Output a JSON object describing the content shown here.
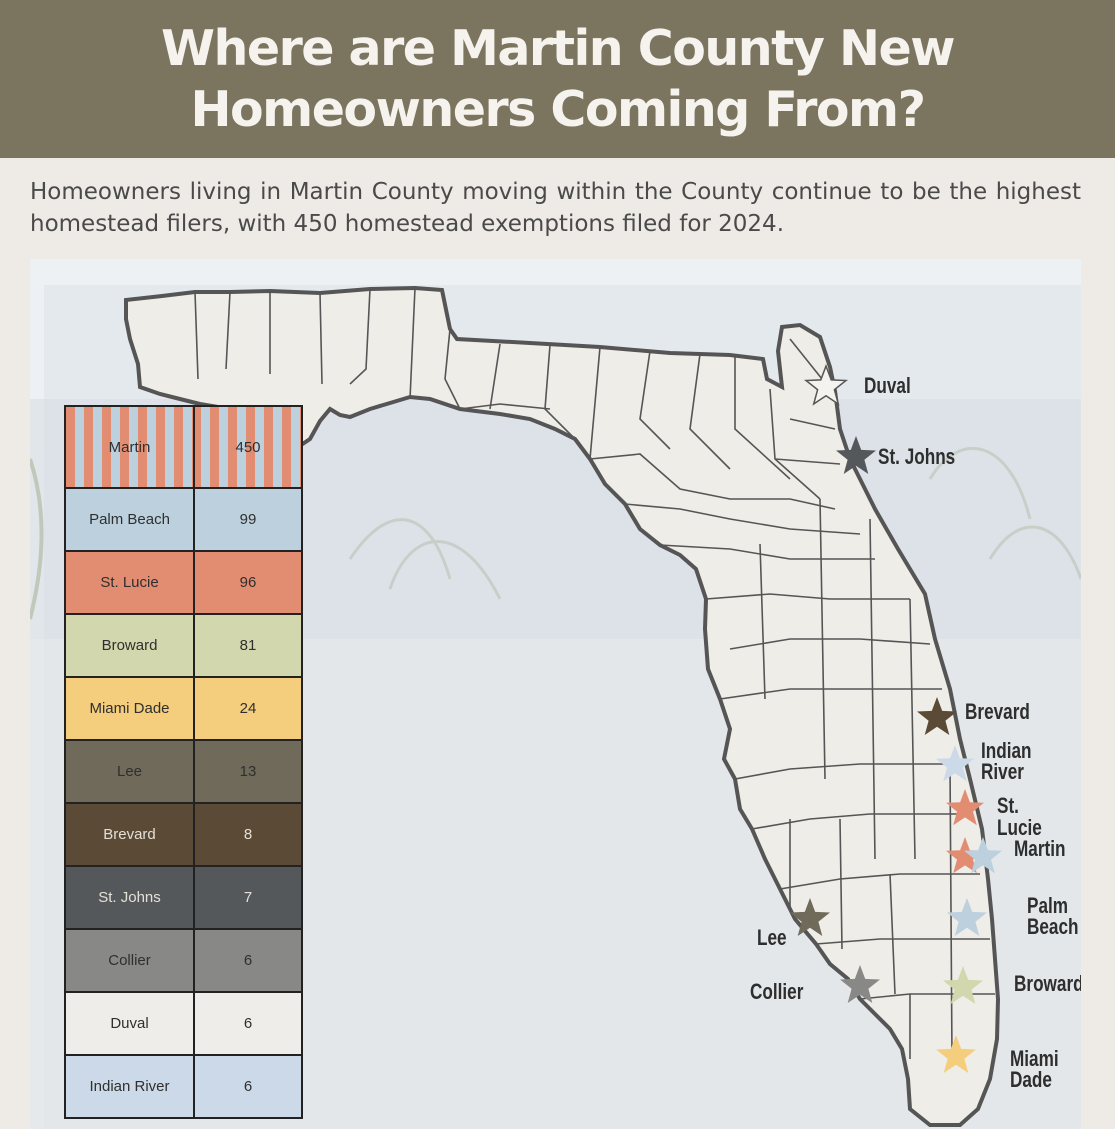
{
  "header": {
    "title": "Where are Martin County New Homeowners Coming From?"
  },
  "intro": {
    "text": "Homeowners living in Martin County moving within the County continue to be the highest homestead filers, with 450 homestead exemptions filed for 2024."
  },
  "legend": {
    "rows": [
      {
        "county": "Martin",
        "count": "450",
        "color": "striped"
      },
      {
        "county": "Palm Beach",
        "count": "99",
        "color": "#bcd0de"
      },
      {
        "county": "St. Lucie",
        "count": "96",
        "color": "#e28d72"
      },
      {
        "county": "Broward",
        "count": "81",
        "color": "#d2d7ad"
      },
      {
        "county": "Miami Dade",
        "count": "24",
        "color": "#f4cd7d"
      },
      {
        "county": "Lee",
        "count": "13",
        "color": "#6f6a59"
      },
      {
        "county": "Brevard",
        "count": "8",
        "color": "#5b4a35"
      },
      {
        "county": "St. Johns",
        "count": "7",
        "color": "#55585b"
      },
      {
        "county": "Collier",
        "count": "6",
        "color": "#888887"
      },
      {
        "county": "Duval",
        "count": "6",
        "color": "#efedea"
      },
      {
        "county": "Indian River",
        "count": "6",
        "color": "#ccd9e8"
      }
    ]
  },
  "map": {
    "labels": {
      "duval": "Duval",
      "st_johns": "St. Johns",
      "brevard": "Brevard",
      "indian_river": "Indian\nRiver",
      "st_lucie": "St. Lucie",
      "martin": "Martin",
      "palm_beach": "Palm\nBeach",
      "broward": "Broward",
      "miami_dade": "Miami\nDade",
      "lee": "Lee",
      "collier": "Collier"
    },
    "colors": {
      "land": "#efede8",
      "outline": "#555555",
      "star_duval": "#f5f3ef",
      "star_st_johns": "#55585b",
      "star_brevard": "#5b4a35",
      "star_indian_river": "#ccd9e8",
      "star_st_lucie": "#e28d72",
      "star_martin_a": "#e28d72",
      "star_martin_b": "#bcd0de",
      "star_palm_beach": "#bcd0de",
      "star_broward": "#d2d7ad",
      "star_miami_dade": "#f4cd7d",
      "star_lee": "#6f6a59",
      "star_collier": "#888887"
    }
  }
}
